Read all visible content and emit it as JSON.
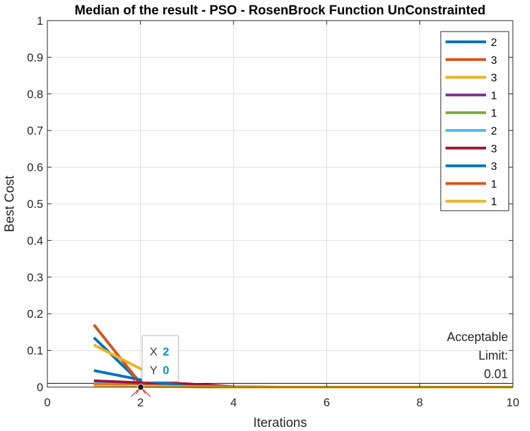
{
  "chart_data": {
    "type": "line",
    "title": "Median of the result - PSO - RosenBrock Function UnConstrainted",
    "xlabel": "Iterations",
    "ylabel": "Best Cost",
    "xlim": [
      0,
      10
    ],
    "ylim": [
      0,
      1
    ],
    "xticks": [
      0,
      2,
      4,
      6,
      8,
      10
    ],
    "yticks": [
      0,
      0.1,
      0.2,
      0.3,
      0.4,
      0.5,
      0.6,
      0.7,
      0.8,
      0.9,
      1
    ],
    "grid": true,
    "legend_position": "top-right",
    "x": [
      1,
      2,
      3,
      4,
      5,
      6,
      7,
      8,
      9,
      10
    ],
    "series": [
      {
        "name": "2",
        "color": "#0072BD",
        "values": [
          0.135,
          0.012,
          0.001,
          0,
          0,
          0,
          0,
          0,
          0,
          0
        ]
      },
      {
        "name": "3",
        "color": "#D95319",
        "values": [
          0.17,
          0.01,
          0.001,
          0,
          0,
          0,
          0,
          0,
          0,
          0
        ]
      },
      {
        "name": "3",
        "color": "#EDB120",
        "values": [
          0.115,
          0.05,
          0.002,
          0,
          0,
          0,
          0,
          0,
          0,
          0
        ]
      },
      {
        "name": "1",
        "color": "#7E2F8E",
        "values": [
          0.008,
          0.004,
          0.001,
          0,
          0,
          0,
          0,
          0,
          0,
          0
        ]
      },
      {
        "name": "1",
        "color": "#77AC30",
        "values": [
          0.005,
          0.003,
          0.001,
          0,
          0,
          0,
          0,
          0,
          0,
          0
        ]
      },
      {
        "name": "2",
        "color": "#4DBEEE",
        "values": [
          0.01,
          0.006,
          0.001,
          0,
          0,
          0,
          0,
          0,
          0,
          0
        ]
      },
      {
        "name": "3",
        "color": "#A2142F",
        "values": [
          0.017,
          0.012,
          0.009,
          0.001,
          0,
          0,
          0,
          0,
          0,
          0
        ]
      },
      {
        "name": "3",
        "color": "#0072BD",
        "values": [
          0.045,
          0.02,
          0.002,
          0,
          0,
          0,
          0,
          0,
          0,
          0
        ]
      },
      {
        "name": "1",
        "color": "#D95319",
        "values": [
          0.006,
          0.004,
          0.001,
          0,
          0,
          0,
          0,
          0,
          0,
          0
        ]
      },
      {
        "name": "1",
        "color": "#EDB120",
        "values": [
          0.003,
          0.002,
          0.001,
          0,
          0,
          0,
          0,
          0,
          0,
          0
        ]
      }
    ],
    "reference_line": {
      "y": 0.01,
      "color": "#000000"
    },
    "annotation": {
      "lines": [
        "Acceptable",
        "Limit:",
        "0.01"
      ]
    },
    "datatip": {
      "x_label": "X",
      "x_value": "2",
      "y_label": "Y",
      "y_value": "0",
      "x": 2,
      "y": 0
    }
  }
}
